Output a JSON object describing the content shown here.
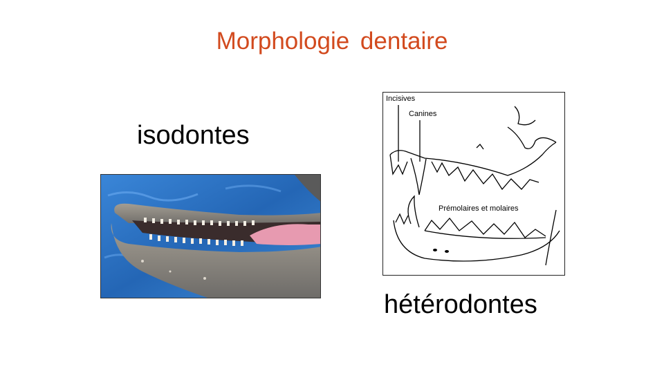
{
  "slide": {
    "title": "Morphologie dentaire",
    "label_left": "isodontes",
    "label_right": "hétérodontes"
  },
  "drawing": {
    "incisives": "Incisives",
    "canines": "Canines",
    "premolaires": "Prémolaires et molaires"
  },
  "colors": {
    "title": "#d24a1e",
    "water": "#2a6bbf",
    "jaw": "#8c8a86",
    "tongue": "#e79ab0"
  }
}
